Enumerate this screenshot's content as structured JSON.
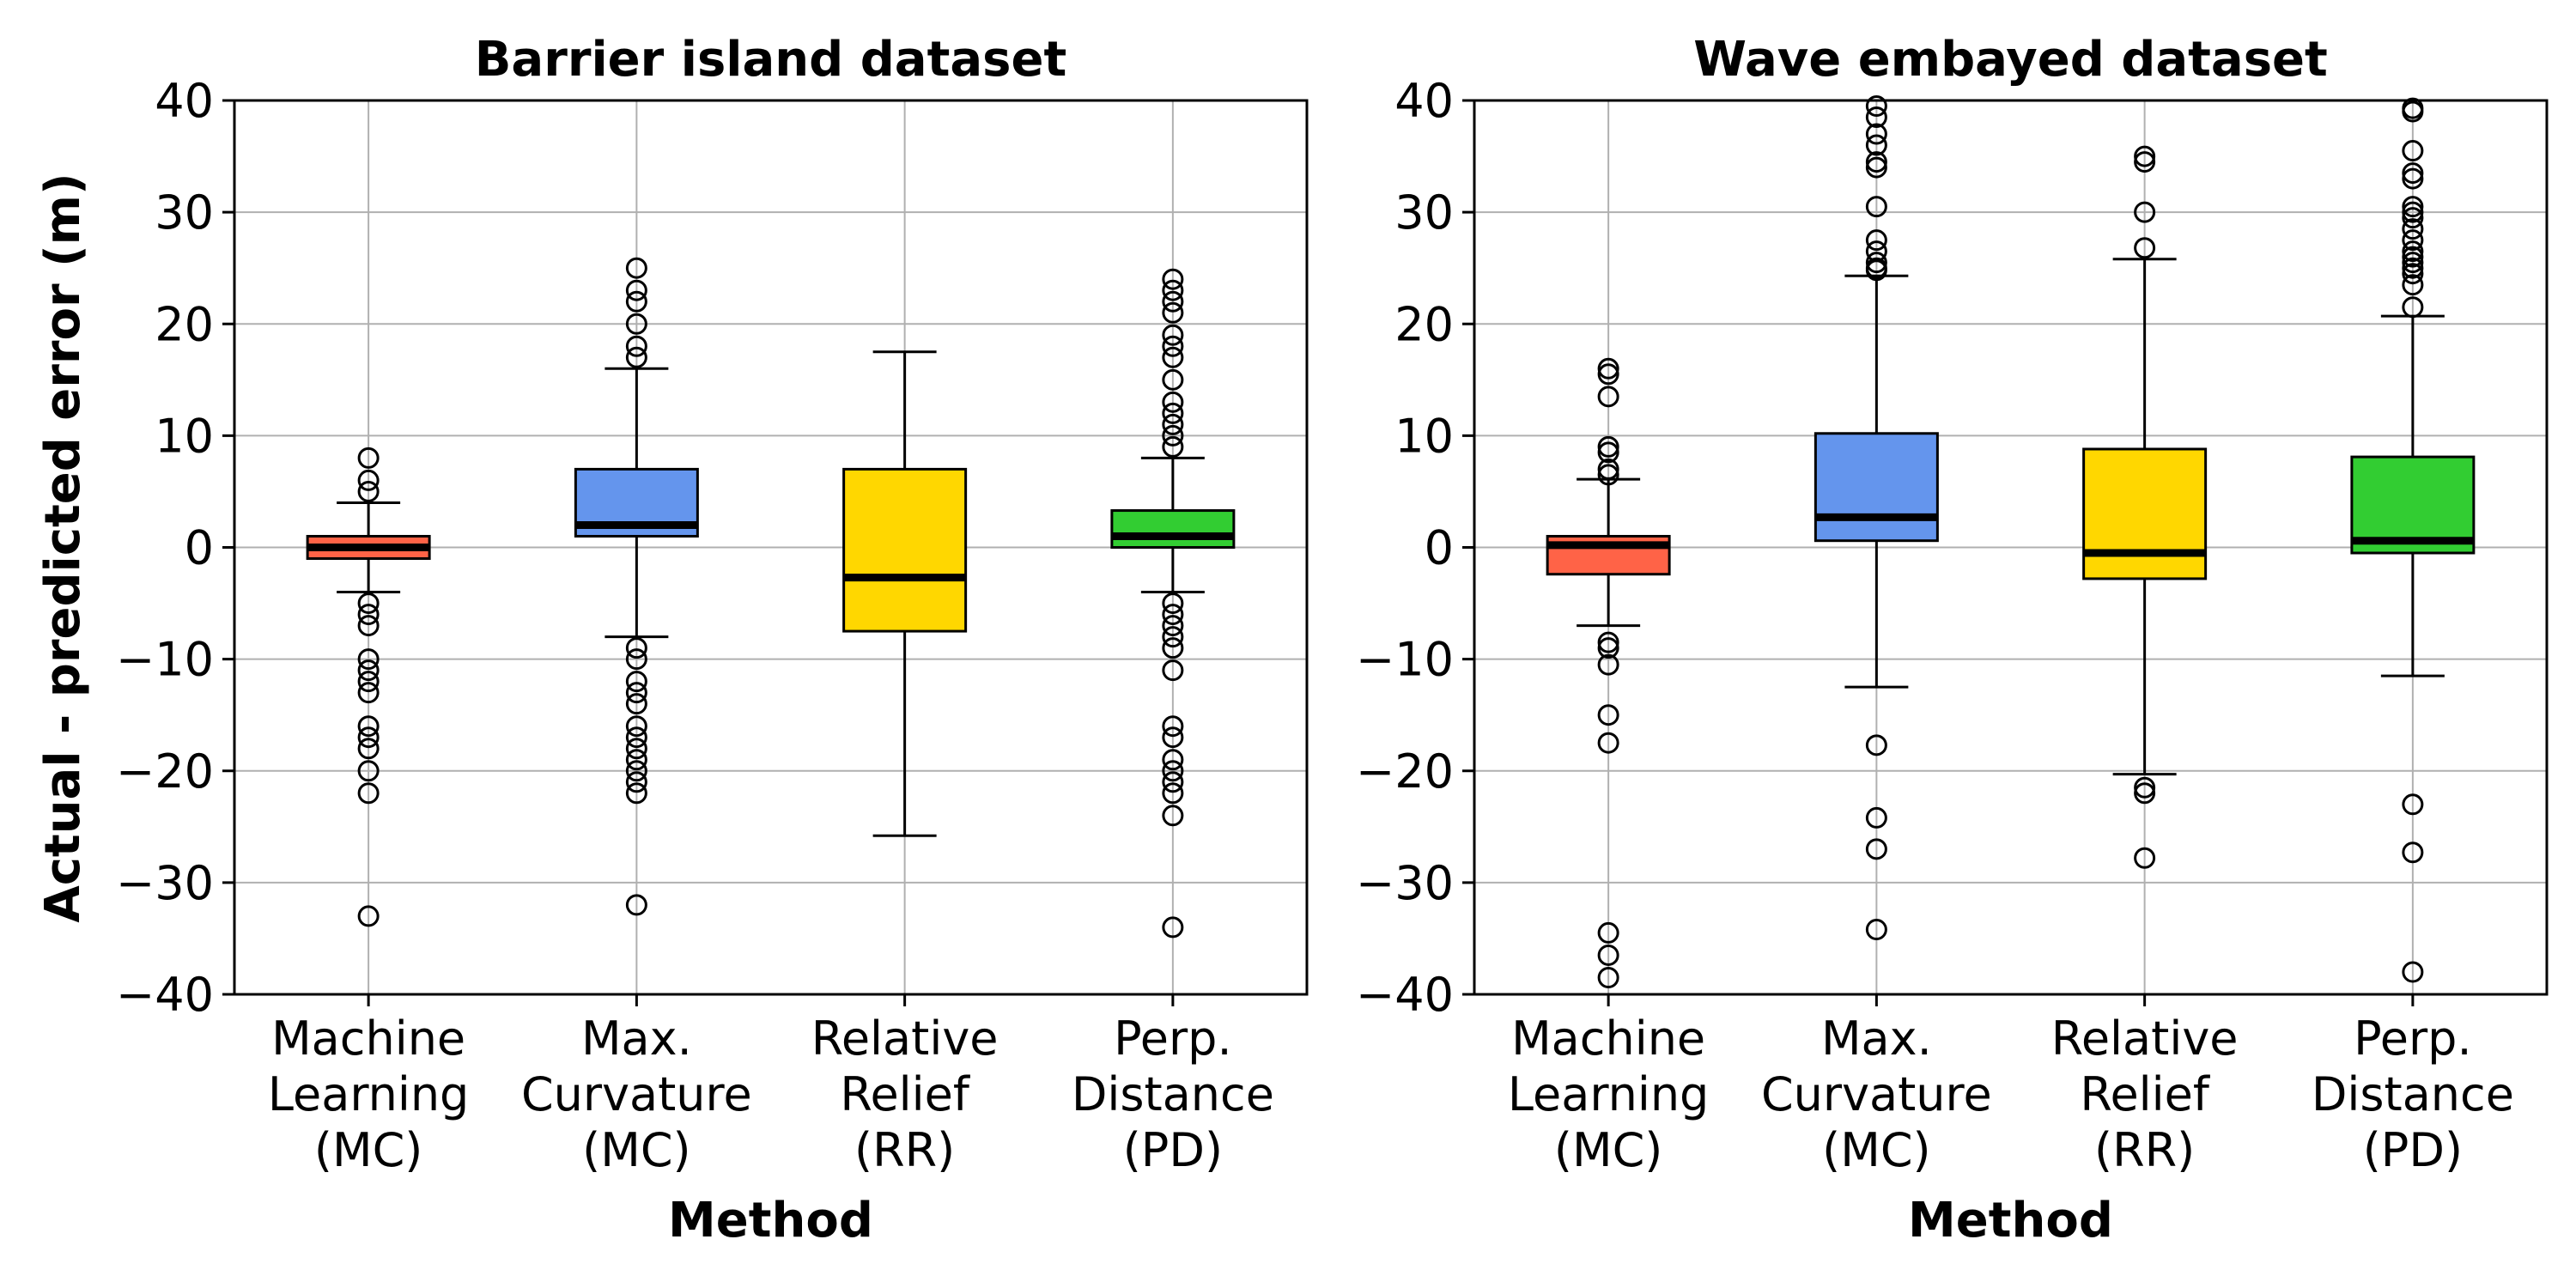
{
  "ylabel": "Actual - predicted error (m)",
  "chart_data": [
    {
      "type": "box",
      "title": "Barrier island dataset",
      "xlabel": "Method",
      "ylabel": "Actual - predicted error (m)",
      "ylim": [
        -40,
        40
      ],
      "yticks": [
        -40,
        -30,
        -20,
        -10,
        0,
        10,
        20,
        30,
        40
      ],
      "ytick_labels": [
        "−40",
        "−30",
        "−20",
        "−10",
        "0",
        "10",
        "20",
        "30",
        "40"
      ],
      "grid": true,
      "categories": [
        {
          "label_lines": [
            "Machine",
            "Learning",
            "(MC)"
          ],
          "color": "#ff6347",
          "q1": -1,
          "median": 0,
          "q3": 1,
          "whisker_low": -4,
          "whisker_high": 4,
          "outliers": [
            8,
            6,
            5,
            -5,
            -6,
            -7,
            -10,
            -11,
            -12,
            -13,
            -16,
            -17,
            -18,
            -20,
            -22,
            -33
          ]
        },
        {
          "label_lines": [
            "Max.",
            "Curvature",
            "(MC)"
          ],
          "color": "#6495ed",
          "q1": 1,
          "median": 2,
          "q3": 7,
          "whisker_low": -8,
          "whisker_high": 16,
          "outliers": [
            25,
            23,
            22,
            20,
            18,
            17,
            -9,
            -10,
            -12,
            -13,
            -14,
            -16,
            -17,
            -18,
            -19,
            -20,
            -21,
            -22,
            -32
          ]
        },
        {
          "label_lines": [
            "Relative",
            "Relief",
            "(RR)"
          ],
          "color": "#ffd700",
          "q1": -7.5,
          "median": -2.7,
          "q3": 7,
          "whisker_low": -25.8,
          "whisker_high": 17.5,
          "outliers": []
        },
        {
          "label_lines": [
            "Perp.",
            "Distance",
            "(PD)"
          ],
          "color": "#32cd32",
          "q1": 0,
          "median": 1,
          "q3": 3.3,
          "whisker_low": -4,
          "whisker_high": 8,
          "outliers": [
            24,
            23,
            22,
            21,
            19,
            18,
            17,
            15,
            13,
            12,
            11,
            10,
            9,
            -5,
            -6,
            -7,
            -8,
            -9,
            -11,
            -16,
            -17,
            -19,
            -20,
            -21,
            -22,
            -24,
            -34
          ]
        }
      ]
    },
    {
      "type": "box",
      "title": "Wave embayed dataset",
      "xlabel": "Method",
      "ylim": [
        -40,
        40
      ],
      "yticks": [
        -40,
        -30,
        -20,
        -10,
        0,
        10,
        20,
        30,
        40
      ],
      "ytick_labels": [
        "−40",
        "−30",
        "−20",
        "−10",
        "0",
        "10",
        "20",
        "30",
        "40"
      ],
      "grid": true,
      "categories": [
        {
          "label_lines": [
            "Machine",
            "Learning",
            "(MC)"
          ],
          "color": "#ff6347",
          "q1": -2.4,
          "median": 0.2,
          "q3": 1,
          "whisker_low": -7,
          "whisker_high": 6.1,
          "outliers": [
            16,
            15.5,
            13.5,
            9,
            8.5,
            7,
            6.5,
            -8.5,
            -9,
            -10.5,
            -15,
            -17.5,
            -34.5,
            -36.5,
            -38.5
          ]
        },
        {
          "label_lines": [
            "Max.",
            "Curvature",
            "(MC)"
          ],
          "color": "#6495ed",
          "q1": 0.6,
          "median": 2.7,
          "q3": 10.2,
          "whisker_low": -12.5,
          "whisker_high": 24.3,
          "outliers": [
            39.5,
            38.5,
            37,
            36,
            34.5,
            34,
            30.5,
            27.5,
            26.5,
            25.5,
            25,
            24.8,
            -17.7,
            -24.2,
            -27,
            -34.2
          ]
        },
        {
          "label_lines": [
            "Relative",
            "Relief",
            "(RR)"
          ],
          "color": "#ffd700",
          "q1": -2.8,
          "median": -0.5,
          "q3": 8.8,
          "whisker_low": -20.3,
          "whisker_high": 25.8,
          "outliers": [
            35,
            34.5,
            30,
            26.8,
            -21.5,
            -22,
            -27.8
          ]
        },
        {
          "label_lines": [
            "Perp.",
            "Distance",
            "(PD)"
          ],
          "color": "#32cd32",
          "q1": -0.5,
          "median": 0.6,
          "q3": 8.1,
          "whisker_low": -11.5,
          "whisker_high": 20.7,
          "outliers": [
            39.3,
            39,
            35.5,
            33.5,
            33,
            30.5,
            30,
            29.5,
            28.5,
            27.5,
            26.5,
            26,
            25.5,
            25,
            24.5,
            23.5,
            21.5,
            -23,
            -27.3,
            -38
          ]
        }
      ]
    }
  ]
}
